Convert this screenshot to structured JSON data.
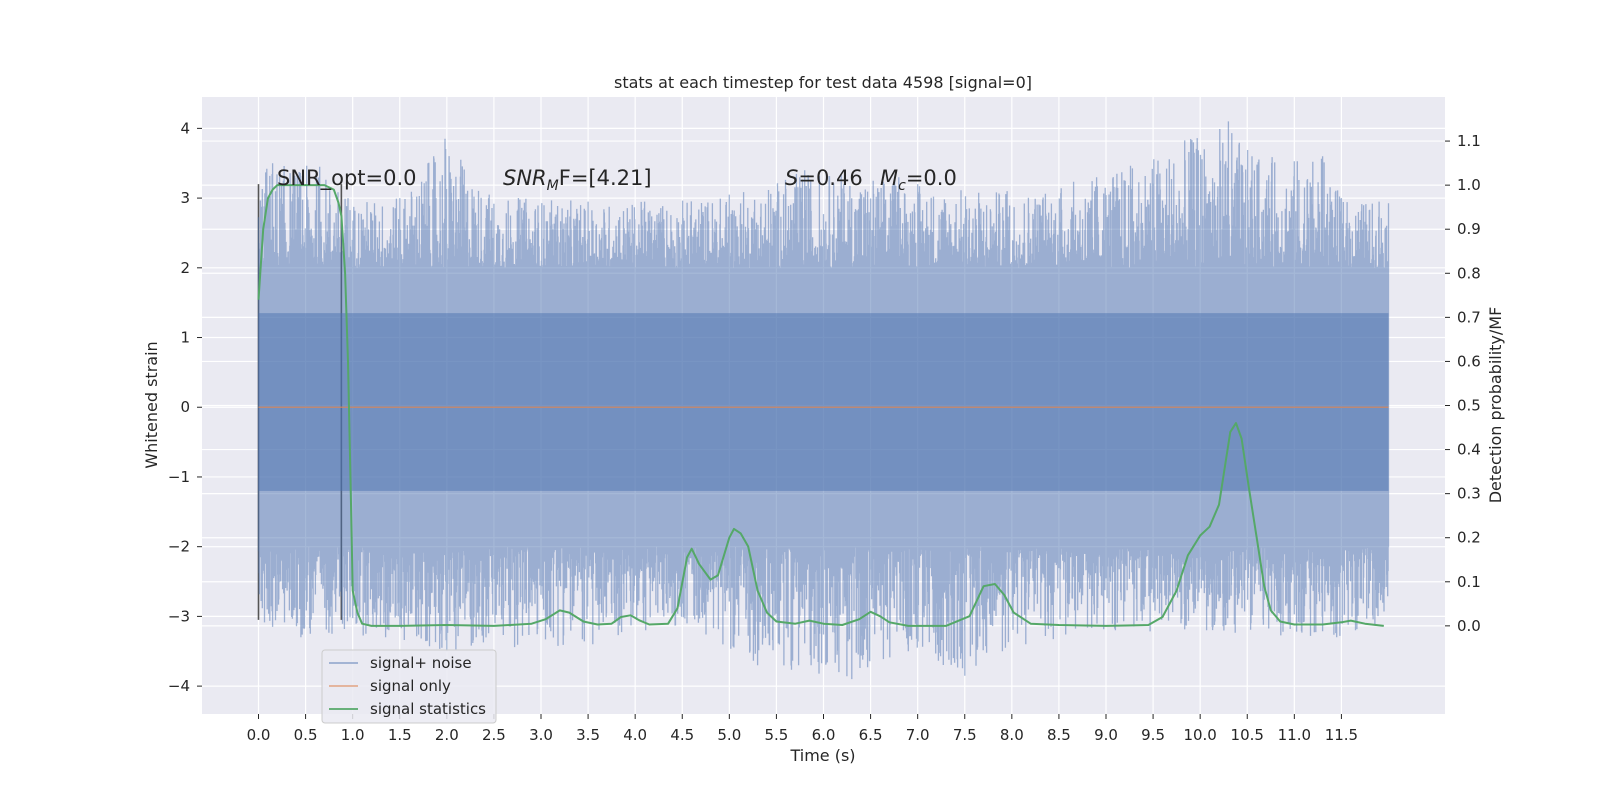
{
  "chart_data": {
    "type": "line",
    "title": "stats at each timestep for test data 4598 [signal=0]",
    "xlabel": "Time (s)",
    "ylabel": "Whitened strain",
    "ylabel_right": "Detection probability/MF",
    "xlim": [
      -0.6,
      12.6
    ],
    "ylim": [
      -4.4,
      4.45
    ],
    "ylim_right": [
      -0.2,
      1.2
    ],
    "x_ticks": [
      0.0,
      0.5,
      1.0,
      1.5,
      2.0,
      2.5,
      3.0,
      3.5,
      4.0,
      4.5,
      5.0,
      5.5,
      6.0,
      6.5,
      7.0,
      7.5,
      8.0,
      8.5,
      9.0,
      9.5,
      10.0,
      10.5,
      11.0,
      11.5
    ],
    "x_tick_labels": [
      "0.0",
      "0.5",
      "1.0",
      "1.5",
      "2.0",
      "2.5",
      "3.0",
      "3.5",
      "4.0",
      "4.5",
      "5.0",
      "5.5",
      "6.0",
      "6.5",
      "7.0",
      "7.5",
      "8.0",
      "8.5",
      "9.0",
      "9.5",
      "10.0",
      "10.5",
      "11.0",
      "11.5"
    ],
    "y_ticks": [
      -4,
      -3,
      -2,
      -1,
      0,
      1,
      2,
      3,
      4
    ],
    "y_tick_labels": [
      "−4",
      "−3",
      "−2",
      "−1",
      "0",
      "1",
      "2",
      "3",
      "4"
    ],
    "y2_ticks": [
      0.0,
      0.1,
      0.2,
      0.3,
      0.4,
      0.5,
      0.6,
      0.7,
      0.8,
      0.9,
      1.0,
      1.1
    ],
    "y2_tick_labels": [
      "0.0",
      "0.1",
      "0.2",
      "0.3",
      "0.4",
      "0.5",
      "0.6",
      "0.7",
      "0.8",
      "0.9",
      "1.0",
      "1.1"
    ],
    "grid": true,
    "legend_position": "lower-left",
    "annotations": {
      "snr_opt": "SNR_opt=0.0",
      "snr_mf_sym": "SNR",
      "snr_mf_sub": "M",
      "snr_mf_rest": "F=[4.21]",
      "s_sym": "S",
      "s_rest": "=0.46",
      "mc_sym": "M",
      "mc_sub": "c",
      "mc_rest": "=0.0"
    },
    "markers": [
      0.0,
      0.88
    ],
    "series": [
      {
        "name": "signal+ noise",
        "color": "#4c72b0",
        "x_range": [
          0.0,
          12.0
        ],
        "band_core": [
          -1.2,
          1.35
        ],
        "band_typical": [
          -2.0,
          2.0
        ],
        "envelope_max": [
          [
            0.15,
            3.5
          ],
          [
            0.65,
            3.45
          ],
          [
            0.95,
            3.0
          ],
          [
            1.5,
            3.0
          ],
          [
            1.8,
            3.5
          ],
          [
            1.98,
            3.85
          ],
          [
            2.45,
            3.05
          ],
          [
            3.5,
            2.95
          ],
          [
            4.1,
            2.95
          ],
          [
            5.0,
            3.05
          ],
          [
            5.8,
            3.4
          ],
          [
            6.8,
            3.3
          ],
          [
            7.0,
            3.2
          ],
          [
            7.95,
            3.1
          ],
          [
            8.9,
            3.3
          ],
          [
            10.3,
            4.1
          ],
          [
            10.55,
            3.6
          ],
          [
            11.3,
            3.6
          ],
          [
            11.5,
            3.0
          ],
          [
            11.9,
            2.95
          ]
        ],
        "envelope_min": [
          [
            0.15,
            -3.15
          ],
          [
            0.45,
            -3.3
          ],
          [
            0.55,
            -3.25
          ],
          [
            1.35,
            -3.3
          ],
          [
            2.0,
            -3.5
          ],
          [
            3.55,
            -3.4
          ],
          [
            4.55,
            -3.1
          ],
          [
            5.3,
            -3.7
          ],
          [
            6.3,
            -3.9
          ],
          [
            6.9,
            -3.5
          ],
          [
            7.5,
            -3.85
          ],
          [
            7.9,
            -3.5
          ],
          [
            9.1,
            -3.2
          ],
          [
            11.45,
            -3.3
          ],
          [
            11.65,
            -3.2
          ]
        ],
        "opacity": 0.5
      },
      {
        "name": "signal only",
        "color": "#dd8452",
        "x": [
          0.0,
          12.0
        ],
        "y": [
          0.0,
          0.0
        ]
      },
      {
        "name": "signal statistics",
        "color": "#55a868",
        "axis": "right",
        "x": [
          0.0,
          0.05,
          0.1,
          0.15,
          0.2,
          0.3,
          0.5,
          0.7,
          0.8,
          0.85,
          0.88,
          0.92,
          0.95,
          0.98,
          1.0,
          1.05,
          1.1,
          1.2,
          1.5,
          2.0,
          2.5,
          2.9,
          3.05,
          3.2,
          3.3,
          3.45,
          3.6,
          3.75,
          3.85,
          3.95,
          4.05,
          4.15,
          4.35,
          4.45,
          4.55,
          4.6,
          4.68,
          4.8,
          4.88,
          5.0,
          5.05,
          5.12,
          5.2,
          5.3,
          5.4,
          5.5,
          5.7,
          5.85,
          6.0,
          6.2,
          6.38,
          6.5,
          6.6,
          6.7,
          6.9,
          7.3,
          7.55,
          7.7,
          7.82,
          7.92,
          8.02,
          8.2,
          8.5,
          9.0,
          9.45,
          9.6,
          9.75,
          9.87,
          10.0,
          10.1,
          10.2,
          10.32,
          10.38,
          10.44,
          10.52,
          10.6,
          10.68,
          10.75,
          10.85,
          11.0,
          11.3,
          11.5,
          11.6,
          11.75,
          11.95
        ],
        "y": [
          0.74,
          0.9,
          0.97,
          0.99,
          1.0,
          1.0,
          1.0,
          1.0,
          0.99,
          0.96,
          0.93,
          0.8,
          0.6,
          0.3,
          0.08,
          0.03,
          0.005,
          0.0,
          0.0,
          0.002,
          0.0,
          0.005,
          0.015,
          0.035,
          0.03,
          0.01,
          0.003,
          0.005,
          0.02,
          0.024,
          0.012,
          0.003,
          0.005,
          0.04,
          0.155,
          0.175,
          0.14,
          0.105,
          0.115,
          0.2,
          0.22,
          0.21,
          0.18,
          0.08,
          0.03,
          0.01,
          0.005,
          0.012,
          0.005,
          0.002,
          0.015,
          0.032,
          0.022,
          0.008,
          0.0,
          0.0,
          0.022,
          0.09,
          0.095,
          0.07,
          0.03,
          0.005,
          0.002,
          0.0,
          0.002,
          0.02,
          0.08,
          0.16,
          0.205,
          0.225,
          0.275,
          0.44,
          0.46,
          0.425,
          0.31,
          0.2,
          0.09,
          0.035,
          0.01,
          0.003,
          0.003,
          0.008,
          0.012,
          0.005,
          0.0
        ]
      }
    ]
  }
}
